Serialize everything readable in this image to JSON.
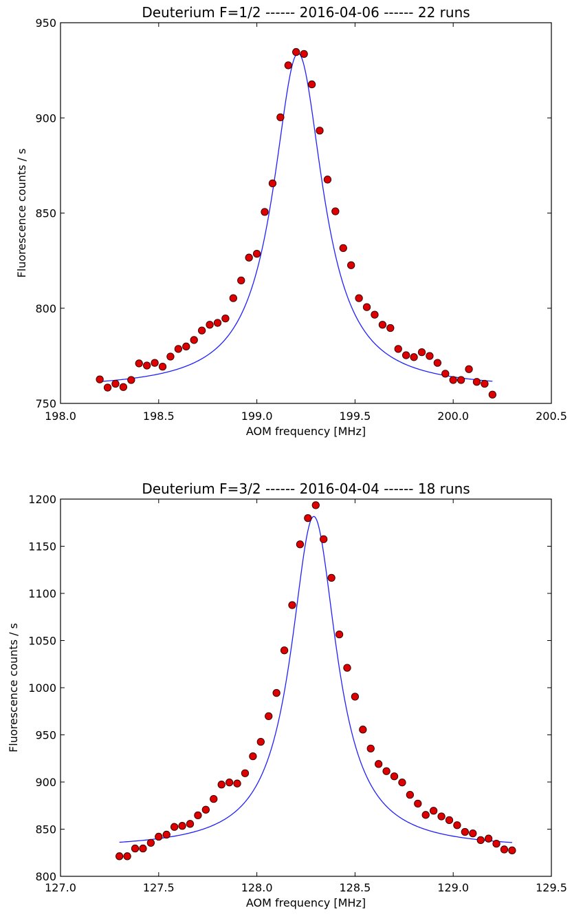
{
  "chart_data": [
    {
      "type": "scatter",
      "title": "Deuterium F=1/2 ------ 2016-04-06 ------ 22 runs",
      "xlabel": "AOM frequency [MHz]",
      "ylabel": "Fluorescence counts / s",
      "xlim": [
        198.0,
        200.5
      ],
      "ylim": [
        750,
        950
      ],
      "xticks": [
        "198.0",
        "198.5",
        "199.0",
        "199.5",
        "200.0",
        "200.5"
      ],
      "yticks": [
        "750",
        "800",
        "850",
        "900",
        "950"
      ],
      "grid": false,
      "marker_color": "#dd0000",
      "line_color": "#1f1fff",
      "points": [
        [
          198.2,
          762.6
        ],
        [
          198.24,
          758.3
        ],
        [
          198.28,
          760.3
        ],
        [
          198.32,
          758.6
        ],
        [
          198.36,
          762.3
        ],
        [
          198.4,
          771.0
        ],
        [
          198.44,
          769.9
        ],
        [
          198.48,
          771.3
        ],
        [
          198.52,
          769.3
        ],
        [
          198.56,
          774.6
        ],
        [
          198.6,
          778.6
        ],
        [
          198.64,
          779.9
        ],
        [
          198.68,
          783.3
        ],
        [
          198.72,
          788.3
        ],
        [
          198.76,
          791.3
        ],
        [
          198.8,
          792.3
        ],
        [
          198.84,
          794.6
        ],
        [
          198.88,
          805.3
        ],
        [
          198.92,
          814.6
        ],
        [
          198.96,
          826.6
        ],
        [
          199.0,
          828.6
        ],
        [
          199.04,
          850.6
        ],
        [
          199.08,
          865.6
        ],
        [
          199.12,
          900.3
        ],
        [
          199.16,
          927.6
        ],
        [
          199.2,
          934.6
        ],
        [
          199.24,
          933.6
        ],
        [
          199.28,
          917.6
        ],
        [
          199.32,
          893.3
        ],
        [
          199.36,
          867.6
        ],
        [
          199.4,
          850.9
        ],
        [
          199.44,
          831.6
        ],
        [
          199.48,
          822.6
        ],
        [
          199.52,
          805.3
        ],
        [
          199.56,
          800.6
        ],
        [
          199.6,
          796.6
        ],
        [
          199.64,
          791.3
        ],
        [
          199.68,
          789.6
        ],
        [
          199.72,
          778.6
        ],
        [
          199.76,
          775.3
        ],
        [
          199.8,
          774.3
        ],
        [
          199.84,
          776.9
        ],
        [
          199.88,
          774.9
        ],
        [
          199.92,
          771.3
        ],
        [
          199.96,
          765.6
        ],
        [
          200.0,
          762.3
        ],
        [
          200.04,
          762.3
        ],
        [
          200.08,
          768.0
        ],
        [
          200.12,
          761.3
        ],
        [
          200.16,
          760.3
        ],
        [
          200.2,
          754.6
        ]
      ],
      "fit": {
        "model": "lorentzian",
        "x0": 199.21,
        "gamma": 0.155,
        "offset": 757.4,
        "amplitude": 176.6,
        "xmin": 198.2,
        "xmax": 200.2
      }
    },
    {
      "type": "scatter",
      "title": "Deuterium F=3/2 ------ 2016-04-04 ------ 18 runs",
      "xlabel": "AOM frequency [MHz]",
      "ylabel": "Fluorescence counts / s",
      "xlim": [
        127.0,
        129.5
      ],
      "ylim": [
        800,
        1200
      ],
      "xticks": [
        "127.0",
        "127.5",
        "128.0",
        "128.5",
        "129.0",
        "129.5"
      ],
      "yticks": [
        "800",
        "850",
        "900",
        "950",
        "1000",
        "1050",
        "1100",
        "1150",
        "1200"
      ],
      "grid": false,
      "marker_color": "#dd0000",
      "line_color": "#1f1fff",
      "points": [
        [
          127.3,
          821.3
        ],
        [
          127.34,
          821.3
        ],
        [
          127.38,
          829.5
        ],
        [
          127.42,
          829.5
        ],
        [
          127.46,
          835.5
        ],
        [
          127.5,
          842.0
        ],
        [
          127.54,
          844.2
        ],
        [
          127.58,
          852.4
        ],
        [
          127.62,
          853.5
        ],
        [
          127.66,
          855.6
        ],
        [
          127.7,
          864.7
        ],
        [
          127.74,
          870.6
        ],
        [
          127.78,
          882.0
        ],
        [
          127.82,
          897.3
        ],
        [
          127.86,
          899.5
        ],
        [
          127.9,
          898.4
        ],
        [
          127.94,
          909.3
        ],
        [
          127.98,
          927.3
        ],
        [
          128.02,
          942.6
        ],
        [
          128.06,
          969.8
        ],
        [
          128.1,
          994.4
        ],
        [
          128.14,
          1039.6
        ],
        [
          128.18,
          1087.6
        ],
        [
          128.22,
          1152.0
        ],
        [
          128.26,
          1179.8
        ],
        [
          128.3,
          1193.5
        ],
        [
          128.34,
          1157.5
        ],
        [
          128.38,
          1116.5
        ],
        [
          128.42,
          1056.5
        ],
        [
          128.46,
          1021.1
        ],
        [
          128.5,
          990.5
        ],
        [
          128.54,
          955.6
        ],
        [
          128.58,
          935.5
        ],
        [
          128.62,
          919.1
        ],
        [
          128.66,
          911.5
        ],
        [
          128.7,
          906.0
        ],
        [
          128.74,
          899.5
        ],
        [
          128.78,
          886.4
        ],
        [
          128.82,
          877.1
        ],
        [
          128.86,
          865.1
        ],
        [
          128.9,
          869.5
        ],
        [
          128.94,
          863.5
        ],
        [
          128.98,
          859.6
        ],
        [
          129.02,
          854.2
        ],
        [
          129.06,
          847.1
        ],
        [
          129.1,
          845.5
        ],
        [
          129.14,
          838.4
        ],
        [
          129.18,
          840.0
        ],
        [
          129.22,
          834.6
        ],
        [
          129.26,
          828.5
        ],
        [
          129.3,
          827.5
        ]
      ],
      "fit": {
        "model": "lorentzian",
        "x0": 128.29,
        "gamma": 0.142,
        "offset": 829.0,
        "amplitude": 352.6,
        "xmin": 127.3,
        "xmax": 129.3
      }
    }
  ]
}
